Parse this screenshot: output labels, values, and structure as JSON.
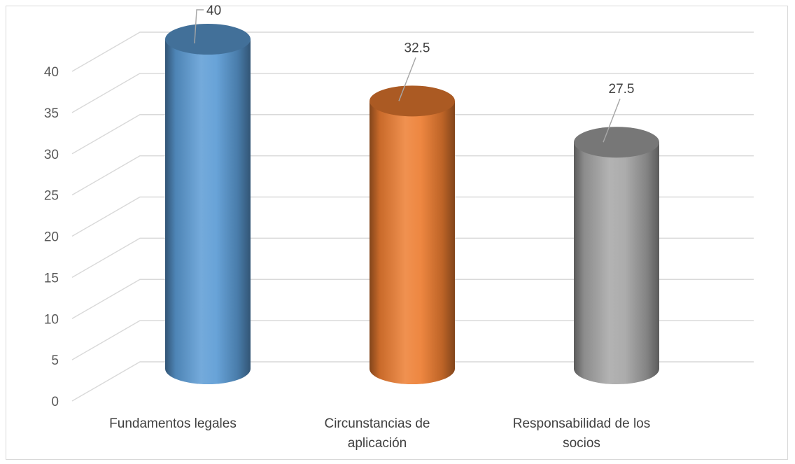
{
  "chart_data": {
    "type": "bar",
    "style": "3d-cylinder",
    "categories": [
      [
        "Fundamentos legales"
      ],
      [
        "Circunstancias de",
        "aplicación"
      ],
      [
        "Responsabilidad de los",
        "socios"
      ]
    ],
    "values": [
      40,
      32.5,
      27.5
    ],
    "data_labels": [
      "40",
      "32.5",
      "27.5"
    ],
    "colors": [
      "#5b9bd5",
      "#ed7d31",
      "#a5a5a5"
    ],
    "ylim": [
      0,
      40
    ],
    "yticks": [
      "0",
      "5",
      "10",
      "15",
      "20",
      "25",
      "30",
      "35",
      "40"
    ],
    "grid": true,
    "legend": "none",
    "title": "",
    "xlabel": "",
    "ylabel": ""
  }
}
